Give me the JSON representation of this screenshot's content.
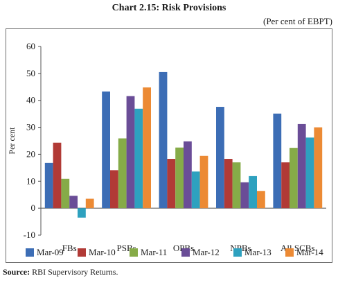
{
  "header": {
    "title": "Chart 2.15: Risk Provisions",
    "subtitle": "(Per cent of EBPT)"
  },
  "footer": {
    "source_label": "Source:",
    "source_text": "RBI Supervisory Returns."
  },
  "chart_data": {
    "type": "bar",
    "categories": [
      "FBs",
      "PSBs",
      "OPBs",
      "NPBs",
      "All SCBs"
    ],
    "series": [
      {
        "name": "Mar-09",
        "color": "#3c6db5",
        "values": [
          16.8,
          43.3,
          50.5,
          37.6,
          35.1
        ]
      },
      {
        "name": "Mar-10",
        "color": "#b13a36",
        "values": [
          24.3,
          14.1,
          18.3,
          18.3,
          17.0
        ]
      },
      {
        "name": "Mar-11",
        "color": "#86ab48",
        "values": [
          10.9,
          25.9,
          22.5,
          17.0,
          22.4
        ]
      },
      {
        "name": "Mar-12",
        "color": "#6a4d97",
        "values": [
          4.6,
          41.6,
          24.8,
          9.6,
          31.2
        ]
      },
      {
        "name": "Mar-13",
        "color": "#2ea1bf",
        "values": [
          -3.5,
          36.9,
          13.6,
          11.9,
          26.2
        ]
      },
      {
        "name": "Mar-14",
        "color": "#ec8a34",
        "values": [
          3.5,
          44.8,
          19.4,
          6.4,
          30.0
        ]
      }
    ],
    "ylabel": "Per cent",
    "ylim": [
      -10,
      60
    ],
    "yticks": [
      -10,
      0,
      10,
      20,
      30,
      40,
      50,
      60
    ],
    "ytick_labels": [
      "-10",
      "0",
      "10",
      "20",
      "30",
      "40",
      "50",
      "60"
    ],
    "grid": false,
    "legend_position": "bottom"
  }
}
